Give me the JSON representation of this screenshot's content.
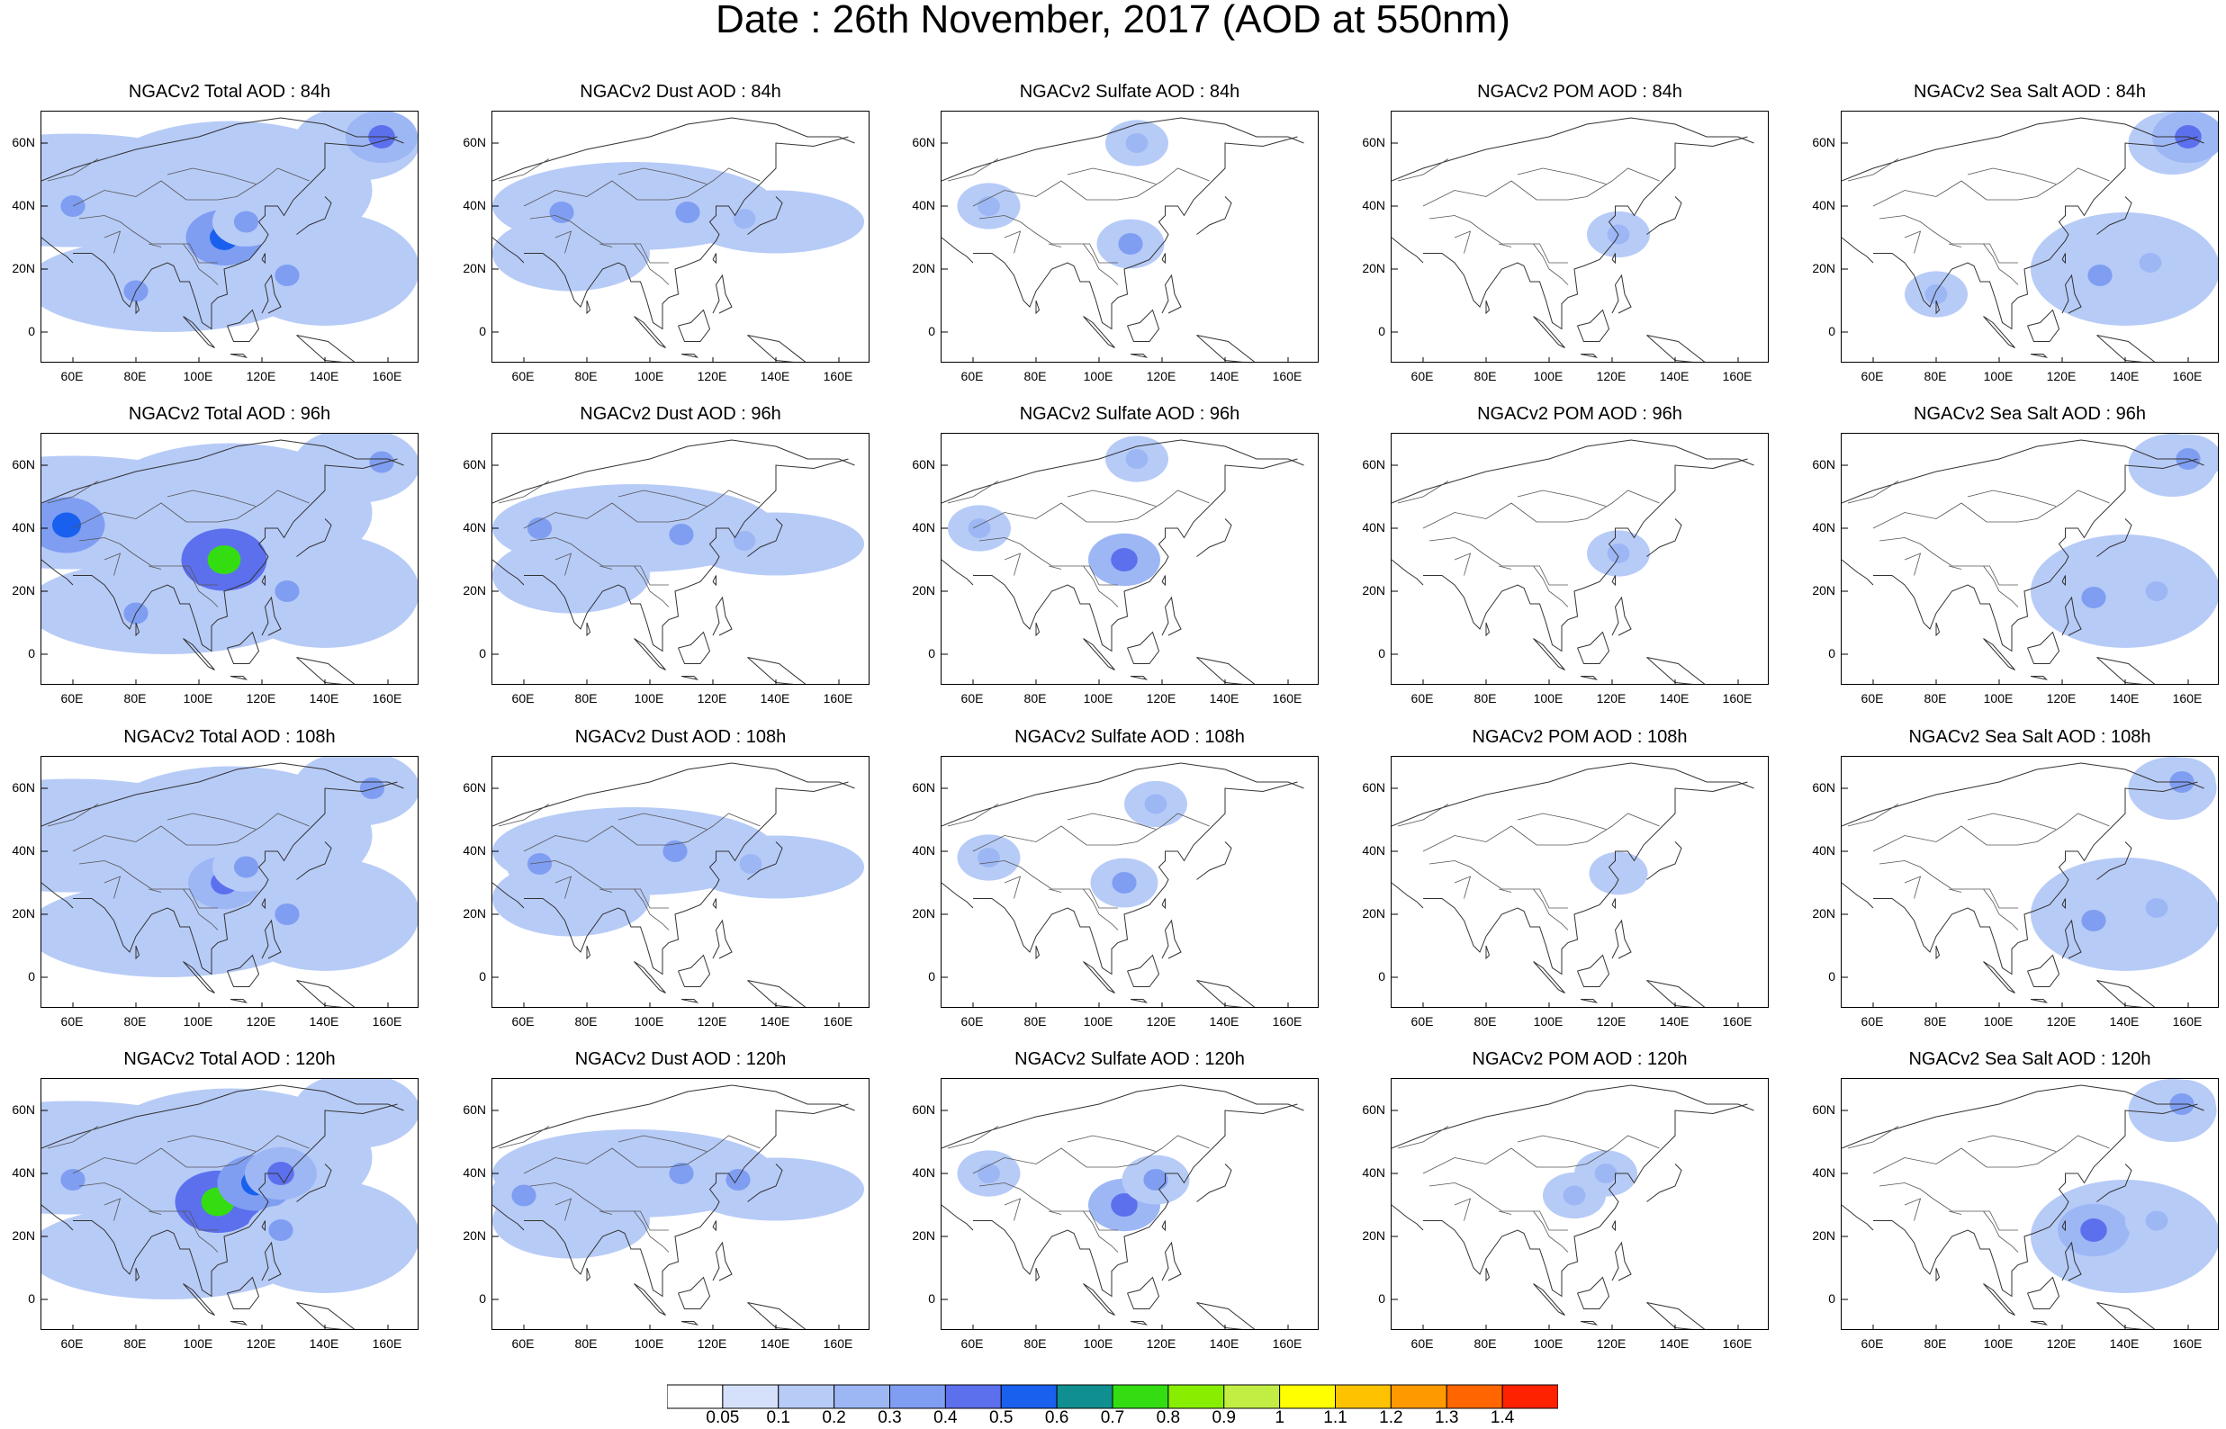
{
  "title": "Date : 26th November, 2017 (AOD at 550nm)",
  "chart_data": {
    "type": "heatmap",
    "grid": {
      "rows": 4,
      "cols": 5
    },
    "panel_titles": [
      [
        "NGACv2 Total AOD : 84h",
        "NGACv2 Dust AOD : 84h",
        "NGACv2 Sulfate AOD : 84h",
        "NGACv2 POM AOD : 84h",
        "NGACv2 Sea Salt AOD : 84h"
      ],
      [
        "NGACv2 Total AOD : 96h",
        "NGACv2 Dust AOD : 96h",
        "NGACv2 Sulfate AOD : 96h",
        "NGACv2 POM AOD : 96h",
        "NGACv2 Sea Salt AOD : 96h"
      ],
      [
        "NGACv2 Total AOD : 108h",
        "NGACv2 Dust AOD : 108h",
        "NGACv2 Sulfate AOD : 108h",
        "NGACv2 POM AOD : 108h",
        "NGACv2 Sea Salt AOD : 108h"
      ],
      [
        "NGACv2 Total AOD : 120h",
        "NGACv2 Dust AOD : 120h",
        "NGACv2 Sulfate AOD : 120h",
        "NGACv2 POM AOD : 120h",
        "NGACv2 Sea Salt  AOD : 120h"
      ]
    ],
    "x_ticks": [
      "60E",
      "80E",
      "100E",
      "120E",
      "140E",
      "160E"
    ],
    "x_tick_values": [
      60,
      80,
      100,
      120,
      140,
      160
    ],
    "y_ticks": [
      "60N",
      "40N",
      "20N",
      "0"
    ],
    "y_tick_values": [
      60,
      40,
      20,
      0
    ],
    "xlim": [
      50,
      170
    ],
    "ylim": [
      -10,
      70
    ],
    "colorbar": {
      "labels": [
        "0.05",
        "0.1",
        "0.2",
        "0.3",
        "0.4",
        "0.5",
        "0.6",
        "0.7",
        "0.8",
        "0.9",
        "1",
        "1.1",
        "1.2",
        "1.3",
        "1.4"
      ],
      "colors": [
        "#ffffff",
        "#d5e1fb",
        "#b7cbf7",
        "#9db7f5",
        "#7f9ef2",
        "#5c70ee",
        "#1a60ee",
        "#0f8f8f",
        "#33dd11",
        "#88ee00",
        "#c2ee44",
        "#ffff00",
        "#ffc200",
        "#ff9900",
        "#ff6600",
        "#ff2200"
      ]
    },
    "plume_levels": {
      "Total": [
        [
          {
            "lon": 108,
            "lat": 30,
            "v": 0.5
          },
          {
            "lon": 60,
            "lat": 40,
            "v": 0.3
          },
          {
            "lon": 158,
            "lat": 62,
            "v": 0.4
          },
          {
            "lon": 80,
            "lat": 13,
            "v": 0.3
          },
          {
            "lon": 128,
            "lat": 18,
            "v": 0.3
          },
          {
            "lon": 115,
            "lat": 35,
            "v": 0.3
          }
        ],
        [
          {
            "lon": 108,
            "lat": 30,
            "v": 0.7
          },
          {
            "lon": 58,
            "lat": 41,
            "v": 0.5
          },
          {
            "lon": 158,
            "lat": 61,
            "v": 0.3
          },
          {
            "lon": 80,
            "lat": 13,
            "v": 0.3
          },
          {
            "lon": 128,
            "lat": 20,
            "v": 0.3
          }
        ],
        [
          {
            "lon": 108,
            "lat": 30,
            "v": 0.4
          },
          {
            "lon": 128,
            "lat": 20,
            "v": 0.3
          },
          {
            "lon": 115,
            "lat": 35,
            "v": 0.3
          },
          {
            "lon": 155,
            "lat": 60,
            "v": 0.3
          }
        ],
        [
          {
            "lon": 106,
            "lat": 31,
            "v": 0.7
          },
          {
            "lon": 118,
            "lat": 37,
            "v": 0.5
          },
          {
            "lon": 126,
            "lat": 40,
            "v": 0.4
          },
          {
            "lon": 126,
            "lat": 22,
            "v": 0.3
          },
          {
            "lon": 60,
            "lat": 38,
            "v": 0.3
          }
        ]
      ],
      "Dust": [
        [
          {
            "lon": 112,
            "lat": 38,
            "v": 0.3
          },
          {
            "lon": 72,
            "lat": 38,
            "v": 0.3
          },
          {
            "lon": 130,
            "lat": 36,
            "v": 0.2
          }
        ],
        [
          {
            "lon": 110,
            "lat": 38,
            "v": 0.3
          },
          {
            "lon": 65,
            "lat": 40,
            "v": 0.3
          },
          {
            "lon": 130,
            "lat": 36,
            "v": 0.2
          }
        ],
        [
          {
            "lon": 108,
            "lat": 40,
            "v": 0.3
          },
          {
            "lon": 65,
            "lat": 36,
            "v": 0.3
          },
          {
            "lon": 132,
            "lat": 36,
            "v": 0.2
          }
        ],
        [
          {
            "lon": 110,
            "lat": 40,
            "v": 0.3
          },
          {
            "lon": 60,
            "lat": 33,
            "v": 0.3
          },
          {
            "lon": 128,
            "lat": 38,
            "v": 0.3
          }
        ]
      ],
      "Sulfate": [
        [
          {
            "lon": 110,
            "lat": 28,
            "v": 0.3
          },
          {
            "lon": 65,
            "lat": 40,
            "v": 0.2
          },
          {
            "lon": 112,
            "lat": 60,
            "v": 0.2
          }
        ],
        [
          {
            "lon": 108,
            "lat": 30,
            "v": 0.4
          },
          {
            "lon": 62,
            "lat": 40,
            "v": 0.2
          },
          {
            "lon": 112,
            "lat": 62,
            "v": 0.2
          }
        ],
        [
          {
            "lon": 108,
            "lat": 30,
            "v": 0.3
          },
          {
            "lon": 65,
            "lat": 38,
            "v": 0.2
          },
          {
            "lon": 118,
            "lat": 55,
            "v": 0.2
          }
        ],
        [
          {
            "lon": 108,
            "lat": 30,
            "v": 0.4
          },
          {
            "lon": 118,
            "lat": 38,
            "v": 0.3
          },
          {
            "lon": 65,
            "lat": 40,
            "v": 0.2
          }
        ]
      ],
      "POM": [
        [
          {
            "lon": 122,
            "lat": 31,
            "v": 0.2
          }
        ],
        [
          {
            "lon": 122,
            "lat": 32,
            "v": 0.2
          }
        ],
        [
          {
            "lon": 122,
            "lat": 33,
            "v": 0.1
          }
        ],
        [
          {
            "lon": 118,
            "lat": 40,
            "v": 0.2
          },
          {
            "lon": 108,
            "lat": 33,
            "v": 0.2
          }
        ]
      ],
      "Sea Salt": [
        [
          {
            "lon": 160,
            "lat": 62,
            "v": 0.4
          },
          {
            "lon": 132,
            "lat": 18,
            "v": 0.3
          },
          {
            "lon": 148,
            "lat": 22,
            "v": 0.2
          },
          {
            "lon": 80,
            "lat": 12,
            "v": 0.2
          }
        ],
        [
          {
            "lon": 160,
            "lat": 62,
            "v": 0.3
          },
          {
            "lon": 130,
            "lat": 18,
            "v": 0.3
          },
          {
            "lon": 150,
            "lat": 20,
            "v": 0.2
          }
        ],
        [
          {
            "lon": 158,
            "lat": 62,
            "v": 0.3
          },
          {
            "lon": 130,
            "lat": 18,
            "v": 0.3
          },
          {
            "lon": 150,
            "lat": 22,
            "v": 0.2
          }
        ],
        [
          {
            "lon": 158,
            "lat": 62,
            "v": 0.3
          },
          {
            "lon": 130,
            "lat": 22,
            "v": 0.4
          },
          {
            "lon": 150,
            "lat": 25,
            "v": 0.2
          }
        ]
      ]
    }
  }
}
